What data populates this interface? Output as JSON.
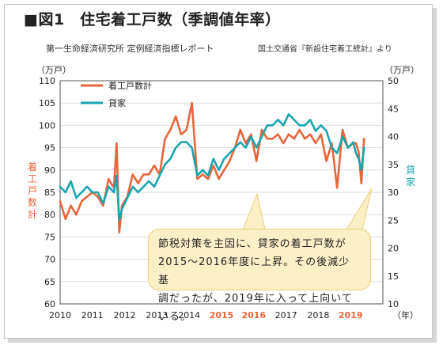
{
  "header": {
    "title": "■図1　住宅着工戸数（季調値年率）",
    "source_left": "第一生命経済研究所 定例経済指標レポート",
    "source_right": "国土交通省『新設住宅着工統計』より"
  },
  "callout": {
    "text": "節税対策を主因に、貸家の着工戸数が\n2015〜2016年度に上昇。その後減少基\n調だったが、2019年に入って上向いている。"
  },
  "chart_data": {
    "type": "line",
    "title": "住宅着工戸数（季調値年率）",
    "x_unit": "（年）",
    "x_ticks": [
      "2010",
      "2011",
      "2012",
      "2013",
      "2014",
      "2015",
      "2016",
      "2017",
      "2018",
      "2019"
    ],
    "x_tick_colors": [
      "#222222",
      "#222222",
      "#222222",
      "#222222",
      "#222222",
      "#e8653b",
      "#e8653b",
      "#222222",
      "#222222",
      "#e8653b"
    ],
    "y_left": {
      "label": "着工戸数計",
      "unit": "（万戸）",
      "min": 60,
      "max": 110,
      "ticks": [
        60,
        65,
        70,
        75,
        80,
        85,
        90,
        95,
        100,
        105,
        110
      ],
      "color": "#e8653b"
    },
    "y_right": {
      "label": "貸家",
      "unit": "（万戸）",
      "min": 10,
      "max": 50,
      "ticks": [
        10,
        15,
        20,
        25,
        30,
        35,
        40,
        45,
        50
      ],
      "color": "#1aa5ad"
    },
    "x": [
      "2010-01",
      "2010-03",
      "2010-05",
      "2010-07",
      "2010-09",
      "2010-11",
      "2011-01",
      "2011-03",
      "2011-05",
      "2011-07",
      "2011-09",
      "2011-10",
      "2011-11",
      "2011-12",
      "2012-02",
      "2012-04",
      "2012-06",
      "2012-08",
      "2012-10",
      "2012-12",
      "2013-02",
      "2013-04",
      "2013-06",
      "2013-08",
      "2013-10",
      "2013-12",
      "2014-02",
      "2014-04",
      "2014-06",
      "2014-08",
      "2014-10",
      "2014-12",
      "2015-02",
      "2015-04",
      "2015-06",
      "2015-08",
      "2015-10",
      "2015-12",
      "2016-02",
      "2016-04",
      "2016-06",
      "2016-08",
      "2016-10",
      "2016-12",
      "2017-02",
      "2017-04",
      "2017-06",
      "2017-08",
      "2017-10",
      "2017-12",
      "2018-02",
      "2018-04",
      "2018-06",
      "2018-08",
      "2018-10",
      "2018-12",
      "2019-02",
      "2019-03",
      "2019-04",
      "2019-05",
      "2019-06"
    ],
    "series": [
      {
        "name": "着工戸数計",
        "axis": "left",
        "color": "#e8653b",
        "values": [
          83,
          79,
          82,
          80,
          83,
          84,
          85,
          84,
          82,
          88,
          86,
          96,
          76,
          82,
          84,
          89,
          87,
          89,
          89,
          91,
          89,
          97,
          99,
          102,
          98,
          99,
          105,
          88,
          89,
          88,
          91,
          88,
          90,
          92,
          95,
          99,
          96,
          98,
          92,
          99,
          97,
          97,
          98,
          96,
          98,
          97,
          99,
          97,
          98,
          96,
          98,
          92,
          96,
          86,
          99,
          95,
          96,
          96,
          94,
          87,
          97
        ]
      },
      {
        "name": "貸家",
        "axis": "right",
        "color": "#1aa5ad",
        "values": [
          31,
          30,
          32,
          29,
          30,
          31,
          30,
          30,
          28,
          31,
          30,
          33,
          25,
          27,
          29,
          31,
          30,
          31,
          32,
          31,
          33,
          35,
          36,
          38,
          39,
          39,
          38,
          33,
          34,
          33,
          36,
          34,
          36,
          37,
          38,
          39,
          38,
          40,
          38,
          40,
          42,
          42,
          43,
          42,
          44,
          43,
          42,
          42,
          43,
          41,
          42,
          41,
          38,
          37,
          40,
          38,
          39,
          37,
          36,
          34,
          38
        ]
      }
    ]
  }
}
